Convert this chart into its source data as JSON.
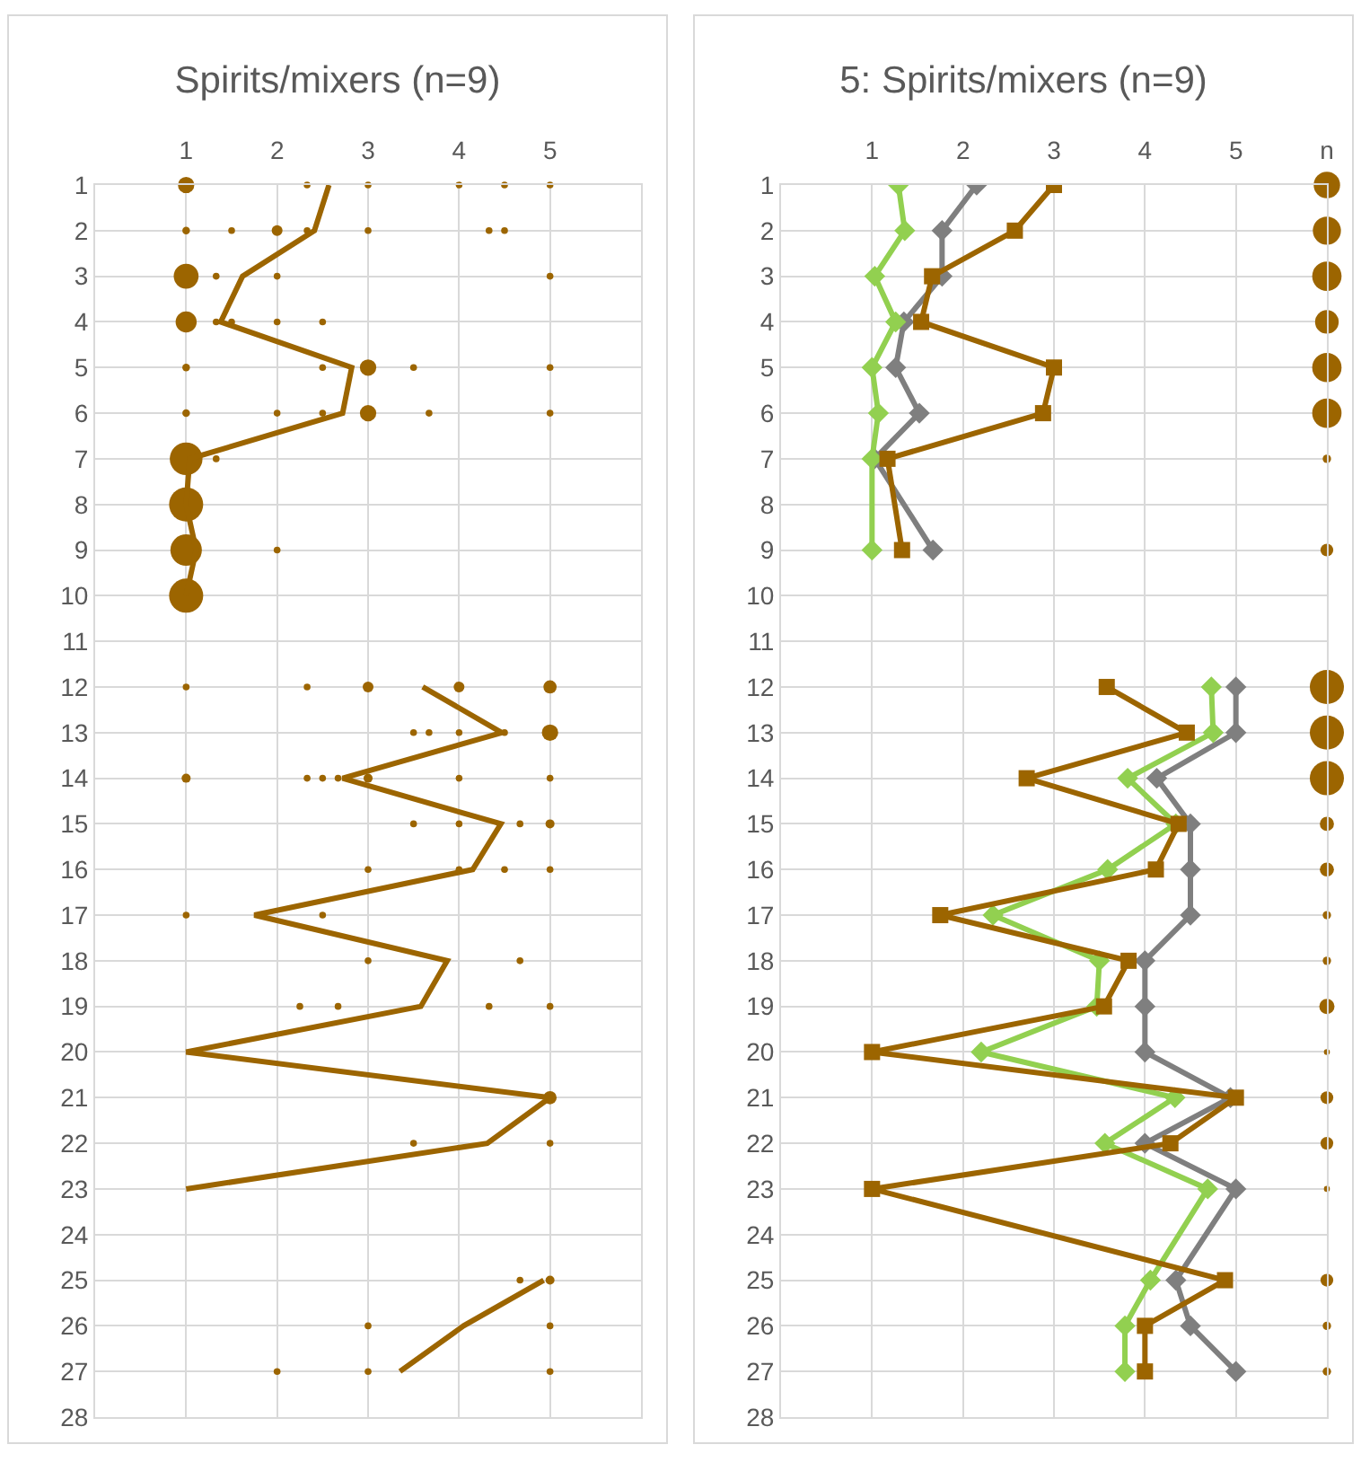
{
  "chart_data": [
    {
      "type": "line",
      "title": "Spirits/mixers (n=9)",
      "xlim": [
        0,
        6
      ],
      "xticks": [
        1,
        2,
        3,
        4,
        5
      ],
      "ylim": [
        28,
        1
      ],
      "yticks": [
        1,
        2,
        3,
        4,
        5,
        6,
        7,
        8,
        9,
        10,
        11,
        12,
        13,
        14,
        15,
        16,
        17,
        18,
        19,
        20,
        21,
        22,
        23,
        24,
        25,
        26,
        27,
        28
      ],
      "grid": true,
      "series": [
        {
          "type": "bubble",
          "color": "#9c6500",
          "x": [
            1,
            2.33,
            3,
            4,
            4.5,
            5,
            1,
            1.5,
            2,
            2.33,
            3,
            4.33,
            4.5,
            1,
            1.33,
            2,
            5,
            1,
            1.33,
            1.5,
            2,
            2.5,
            1,
            2.5,
            3,
            3.5,
            5,
            1,
            2,
            2.5,
            3,
            3.67,
            5,
            1,
            1.33,
            1,
            1,
            2,
            1,
            1,
            2.33,
            3,
            4,
            5,
            3.5,
            3.67,
            4,
            4.5,
            5,
            1,
            2.33,
            2.5,
            2.67,
            3,
            4,
            5,
            3.5,
            4,
            4.67,
            5,
            3,
            4,
            4.5,
            5,
            1,
            2.5,
            3,
            4.67,
            2.25,
            2.67,
            4.33,
            5,
            5,
            3.5,
            5,
            4.67,
            5,
            3,
            5,
            2,
            3,
            5
          ],
          "values": [
            1,
            1,
            1,
            1,
            1,
            1,
            2,
            2,
            2,
            2,
            2,
            2,
            2,
            3,
            3,
            3,
            3,
            4,
            4,
            4,
            4,
            4,
            5,
            5,
            5,
            5,
            5,
            6,
            6,
            6,
            6,
            6,
            6,
            7,
            7,
            8,
            9,
            9,
            10,
            12,
            12,
            12,
            12,
            12,
            13,
            13,
            13,
            13,
            13,
            14,
            14,
            14,
            14,
            14,
            14,
            14,
            15,
            15,
            15,
            15,
            16,
            16,
            16,
            16,
            17,
            17,
            18,
            18,
            19,
            19,
            19,
            19,
            21,
            22,
            22,
            25,
            25,
            26,
            26,
            27,
            27,
            27
          ],
          "sizes": [
            0.23,
            0.04,
            0.04,
            0.04,
            0.04,
            0.04,
            0.05,
            0.04,
            0.1,
            0.04,
            0.04,
            0.04,
            0.04,
            0.53,
            0.04,
            0.04,
            0.04,
            0.38,
            0.04,
            0.04,
            0.04,
            0.04,
            0.05,
            0.04,
            0.23,
            0.04,
            0.04,
            0.05,
            0.04,
            0.04,
            0.23,
            0.04,
            0.04,
            0.92,
            0.04,
            1,
            0.85,
            0.04,
            1,
            0.04,
            0.04,
            0.1,
            0.1,
            0.15,
            0.04,
            0.04,
            0.04,
            0.04,
            0.23,
            0.07,
            0.04,
            0.04,
            0.04,
            0.07,
            0.04,
            0.04,
            0.04,
            0.04,
            0.04,
            0.07,
            0.04,
            0.04,
            0.04,
            0.04,
            0.04,
            0.04,
            0.04,
            0.04,
            0.04,
            0.04,
            0.04,
            0.04,
            0.15,
            0.04,
            0.04,
            0.04,
            0.07,
            0.04,
            0.04,
            0.04,
            0.04,
            0.04
          ]
        },
        {
          "color": "#9c6500",
          "marker": "none",
          "x": [
            2.57,
            2.41,
            1.62,
            1.38,
            2.82,
            2.72,
            1.04,
            1,
            1.11,
            1,
            null,
            3.6,
            4.47,
            2.72,
            4.46,
            4.15,
            1.75,
            3.87,
            3.58,
            1,
            5,
            4.31,
            1,
            null,
            4.93,
            4.05,
            3.35
          ],
          "values": [
            1,
            2,
            3,
            4,
            5,
            6,
            7,
            8,
            9,
            10,
            null,
            12,
            13,
            14,
            15,
            16,
            17,
            18,
            19,
            20,
            21,
            22,
            23,
            null,
            25,
            26,
            27
          ]
        }
      ]
    },
    {
      "type": "line",
      "title": "5: Spirits/mixers (n=9)",
      "xlim": [
        0,
        6
      ],
      "xticks": [
        1,
        2,
        3,
        4,
        5,
        {
          "value": 6,
          "label": "n"
        }
      ],
      "ylim": [
        28,
        1
      ],
      "yticks": [
        1,
        2,
        3,
        4,
        5,
        6,
        7,
        8,
        9,
        10,
        11,
        12,
        13,
        14,
        15,
        16,
        17,
        18,
        19,
        20,
        21,
        22,
        23,
        24,
        25,
        26,
        27,
        28
      ],
      "grid": true,
      "series": [
        {
          "type": "bubble",
          "color": "#9c6500",
          "x": [
            6,
            6,
            6,
            6,
            6,
            6,
            6,
            6,
            6,
            6,
            6,
            6,
            6,
            6,
            6,
            6,
            6,
            6,
            6,
            6,
            6,
            6,
            6
          ],
          "values": [
            1,
            2,
            3,
            4,
            5,
            6,
            7,
            9,
            12,
            13,
            14,
            15,
            16,
            17,
            18,
            19,
            20,
            21,
            22,
            23,
            25,
            26,
            27
          ],
          "sizes": [
            0.6,
            0.68,
            0.74,
            0.48,
            0.74,
            0.74,
            0.06,
            0.14,
            1,
            1,
            1,
            0.17,
            0.17,
            0.06,
            0.06,
            0.2,
            0.03,
            0.14,
            0.14,
            0.03,
            0.14,
            0.06,
            0.06
          ]
        },
        {
          "color": "#7f7f7f",
          "marker": "diamond",
          "x": [
            2.15,
            1.77,
            1.77,
            1.35,
            1.26,
            1.52,
            1.03,
            1.67,
            null,
            5,
            5,
            4.13,
            4.5,
            4.5,
            4.5,
            4,
            4,
            4,
            4.94,
            4,
            5,
            4.34,
            4.5,
            5
          ],
          "values": [
            1,
            2,
            3,
            4,
            5,
            6,
            7,
            9,
            null,
            12,
            13,
            14,
            15,
            16,
            17,
            18,
            19,
            20,
            21,
            22,
            23,
            25,
            26,
            27
          ]
        },
        {
          "color": "#92d050",
          "marker": "diamond",
          "x": [
            1.29,
            1.36,
            1.03,
            1.26,
            1,
            1.07,
            1,
            1,
            null,
            4.73,
            4.75,
            3.81,
            4.34,
            3.59,
            2.33,
            3.5,
            3.47,
            2.2,
            4.33,
            3.56,
            4.69,
            4.06,
            3.78,
            3.78
          ],
          "values": [
            1,
            2,
            3,
            4,
            5,
            6,
            7,
            9,
            null,
            12,
            13,
            14,
            15,
            16,
            17,
            18,
            19,
            20,
            21,
            22,
            23,
            25,
            26,
            27
          ]
        },
        {
          "color": "#9c6500",
          "marker": "square",
          "x": [
            3,
            2.57,
            1.66,
            1.54,
            3,
            2.88,
            1.17,
            1.33,
            null,
            3.58,
            4.46,
            2.7,
            4.37,
            4.12,
            1.75,
            3.82,
            3.55,
            1,
            5,
            4.28,
            1,
            4.88,
            4,
            4
          ],
          "values": [
            1,
            2,
            3,
            4,
            5,
            6,
            7,
            9,
            null,
            12,
            13,
            14,
            15,
            16,
            17,
            18,
            19,
            20,
            21,
            22,
            23,
            25,
            26,
            27
          ]
        }
      ]
    }
  ]
}
